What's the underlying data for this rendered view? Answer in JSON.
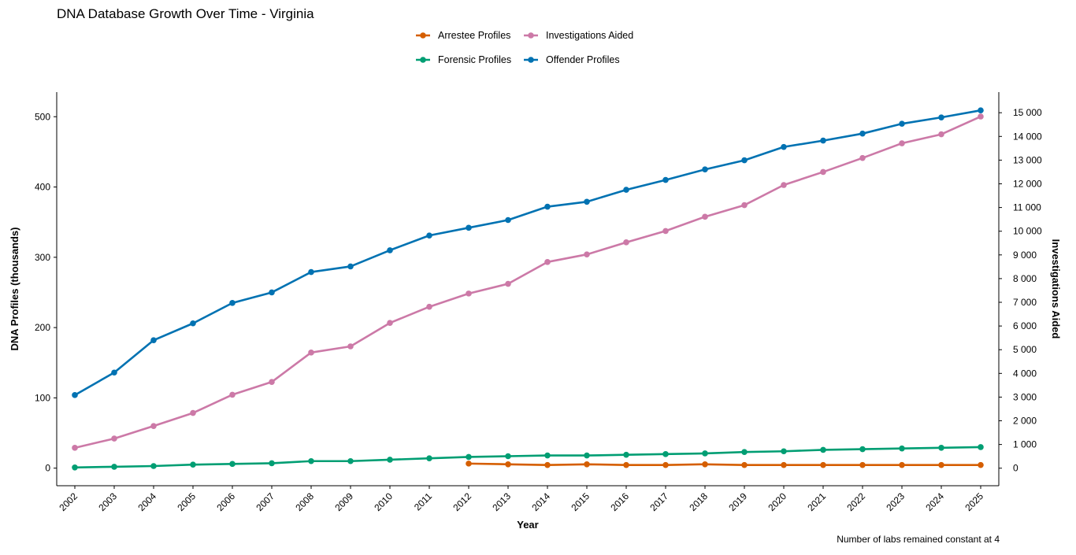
{
  "chart_data": {
    "type": "line",
    "title": "DNA Database Growth Over Time - Virginia",
    "xlabel": "Year",
    "ylabel": "DNA Profiles (thousands)",
    "y2label": "Investigations Aided",
    "caption": "Number of labs remained constant at 4",
    "ylim": [
      -25,
      535
    ],
    "y2lim": [
      -740,
      15870
    ],
    "yticks": [
      0,
      100,
      200,
      300,
      400,
      500
    ],
    "y2ticks": [
      0,
      1000,
      2000,
      3000,
      4000,
      5000,
      6000,
      7000,
      8000,
      9000,
      10000,
      11000,
      12000,
      13000,
      14000,
      15000
    ],
    "y2tick_labels": [
      "0",
      "1 000",
      "2 000",
      "3 000",
      "4 000",
      "5 000",
      "6 000",
      "7 000",
      "8 000",
      "9 000",
      "10 000",
      "11 000",
      "12 000",
      "13 000",
      "14 000",
      "15 000"
    ],
    "x": [
      2002,
      2003,
      2004,
      2005,
      2006,
      2007,
      2008,
      2009,
      2010,
      2011,
      2012,
      2013,
      2014,
      2015,
      2016,
      2017,
      2018,
      2019,
      2020,
      2021,
      2022,
      2023,
      2024,
      2025
    ],
    "grid": false,
    "legend_position": "top-center",
    "series": [
      {
        "name": "Arrestee Profiles",
        "axis": "left",
        "color": "#d55e00",
        "values": [
          null,
          null,
          null,
          null,
          null,
          null,
          null,
          null,
          null,
          null,
          6.5,
          5.5,
          4.5,
          5.5,
          4.5,
          4.5,
          5.5,
          4.5,
          4.5,
          4.5,
          4.5,
          4.5,
          4.5,
          4.5
        ]
      },
      {
        "name": "Investigations Aided",
        "axis": "right",
        "color": "#cc79a7",
        "values": [
          860,
          1250,
          1780,
          2330,
          3100,
          3640,
          4880,
          5140,
          6130,
          6810,
          7370,
          7780,
          8700,
          9020,
          9530,
          10010,
          10610,
          11100,
          11950,
          12500,
          13090,
          13710,
          14090,
          14840
        ]
      },
      {
        "name": "Forensic Profiles",
        "axis": "left",
        "color": "#009e73",
        "values": [
          1,
          2,
          3,
          5,
          6,
          7,
          10,
          10,
          12,
          14,
          16,
          17,
          18,
          18,
          19,
          20,
          21,
          23,
          24,
          26,
          27,
          28,
          29,
          30
        ]
      },
      {
        "name": "Offender Profiles",
        "axis": "left",
        "color": "#0072b2",
        "values": [
          104,
          136,
          182,
          206,
          235,
          250,
          279,
          287,
          310,
          331,
          342,
          353,
          372,
          379,
          396,
          410,
          425,
          438,
          457,
          466,
          476,
          490,
          499,
          509
        ]
      }
    ]
  }
}
